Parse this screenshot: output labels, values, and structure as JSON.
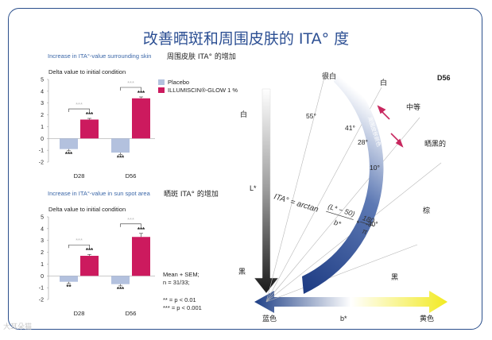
{
  "title": "改善晒斑和周围皮肤的 ITA° 度",
  "colors": {
    "placebo": "#b3c1de",
    "treatment": "#cc1a5e",
    "frame": "#2b4f8c"
  },
  "chart_data": [
    {
      "type": "bar",
      "caption": "Increase in ITA°-value surrounding skin",
      "caption_cn": "周围皮肤 ITA° 的增加",
      "ylabel": "Delta value to initial condition",
      "categories": [
        "D28",
        "D56"
      ],
      "ylim": [
        -2,
        5
      ],
      "yticks": [
        "-2",
        "-1",
        "0",
        "1",
        "2",
        "3",
        "4",
        "5"
      ],
      "legend": [
        "Placebo",
        "ILLUMISCIN®-GLOW 1 %"
      ],
      "series": [
        {
          "name": "Placebo",
          "values": [
            -0.9,
            -1.2
          ],
          "err": [
            0.15,
            0.15
          ],
          "sig": [
            "***",
            "***"
          ]
        },
        {
          "name": "ILLUMISCIN®-GLOW 1 %",
          "values": [
            1.6,
            3.4
          ],
          "err": [
            0.1,
            0.12
          ],
          "sig": [
            "***",
            "***"
          ]
        }
      ],
      "bracket_sig": [
        "***",
        "***"
      ]
    },
    {
      "type": "bar",
      "caption": "Increase in ITA°-value in sun spot area",
      "caption_cn": "晒斑 ITA° 的增加",
      "ylabel": "Delta value to initial condition",
      "categories": [
        "D28",
        "D56"
      ],
      "ylim": [
        -2,
        5
      ],
      "yticks": [
        "-2",
        "-1",
        "0",
        "1",
        "2",
        "3",
        "4",
        "5"
      ],
      "series": [
        {
          "name": "Placebo",
          "values": [
            -0.5,
            -0.7
          ],
          "err": [
            0.15,
            0.15
          ],
          "sig": [
            "**",
            "***"
          ]
        },
        {
          "name": "ILLUMISCIN®-GLOW 1 %",
          "values": [
            1.7,
            3.3
          ],
          "err": [
            0.12,
            0.3
          ],
          "sig": [
            "***",
            "***"
          ]
        }
      ],
      "bracket_sig": [
        "***",
        "***"
      ]
    }
  ],
  "stats_note": {
    "mean": "Mean + SEM;",
    "n": "n = 31/33;",
    "p1": "** = p < 0.01",
    "p2": "*** = p < 0.001"
  },
  "ita_diagram": {
    "axis_l": "L*",
    "axis_b": "b*",
    "white": "白",
    "black": "黑",
    "blue": "蓝色",
    "yellow": "黄色",
    "very_light": "很白",
    "light": "白",
    "intermediate": "中等",
    "tanned": "晒黑的",
    "brown": "棕",
    "dark": "黑",
    "day": "D56",
    "angles": [
      "55°",
      "41°",
      "28°",
      "10°",
      "-30°"
    ],
    "arc_label": "周围皮肤颜色",
    "formula": "ITA° = arctan",
    "formula_num": "(L* − 50)",
    "formula_den": "b*",
    "formula_mult": "180",
    "formula_pi": "π"
  },
  "watermark": "大耳朵猫"
}
